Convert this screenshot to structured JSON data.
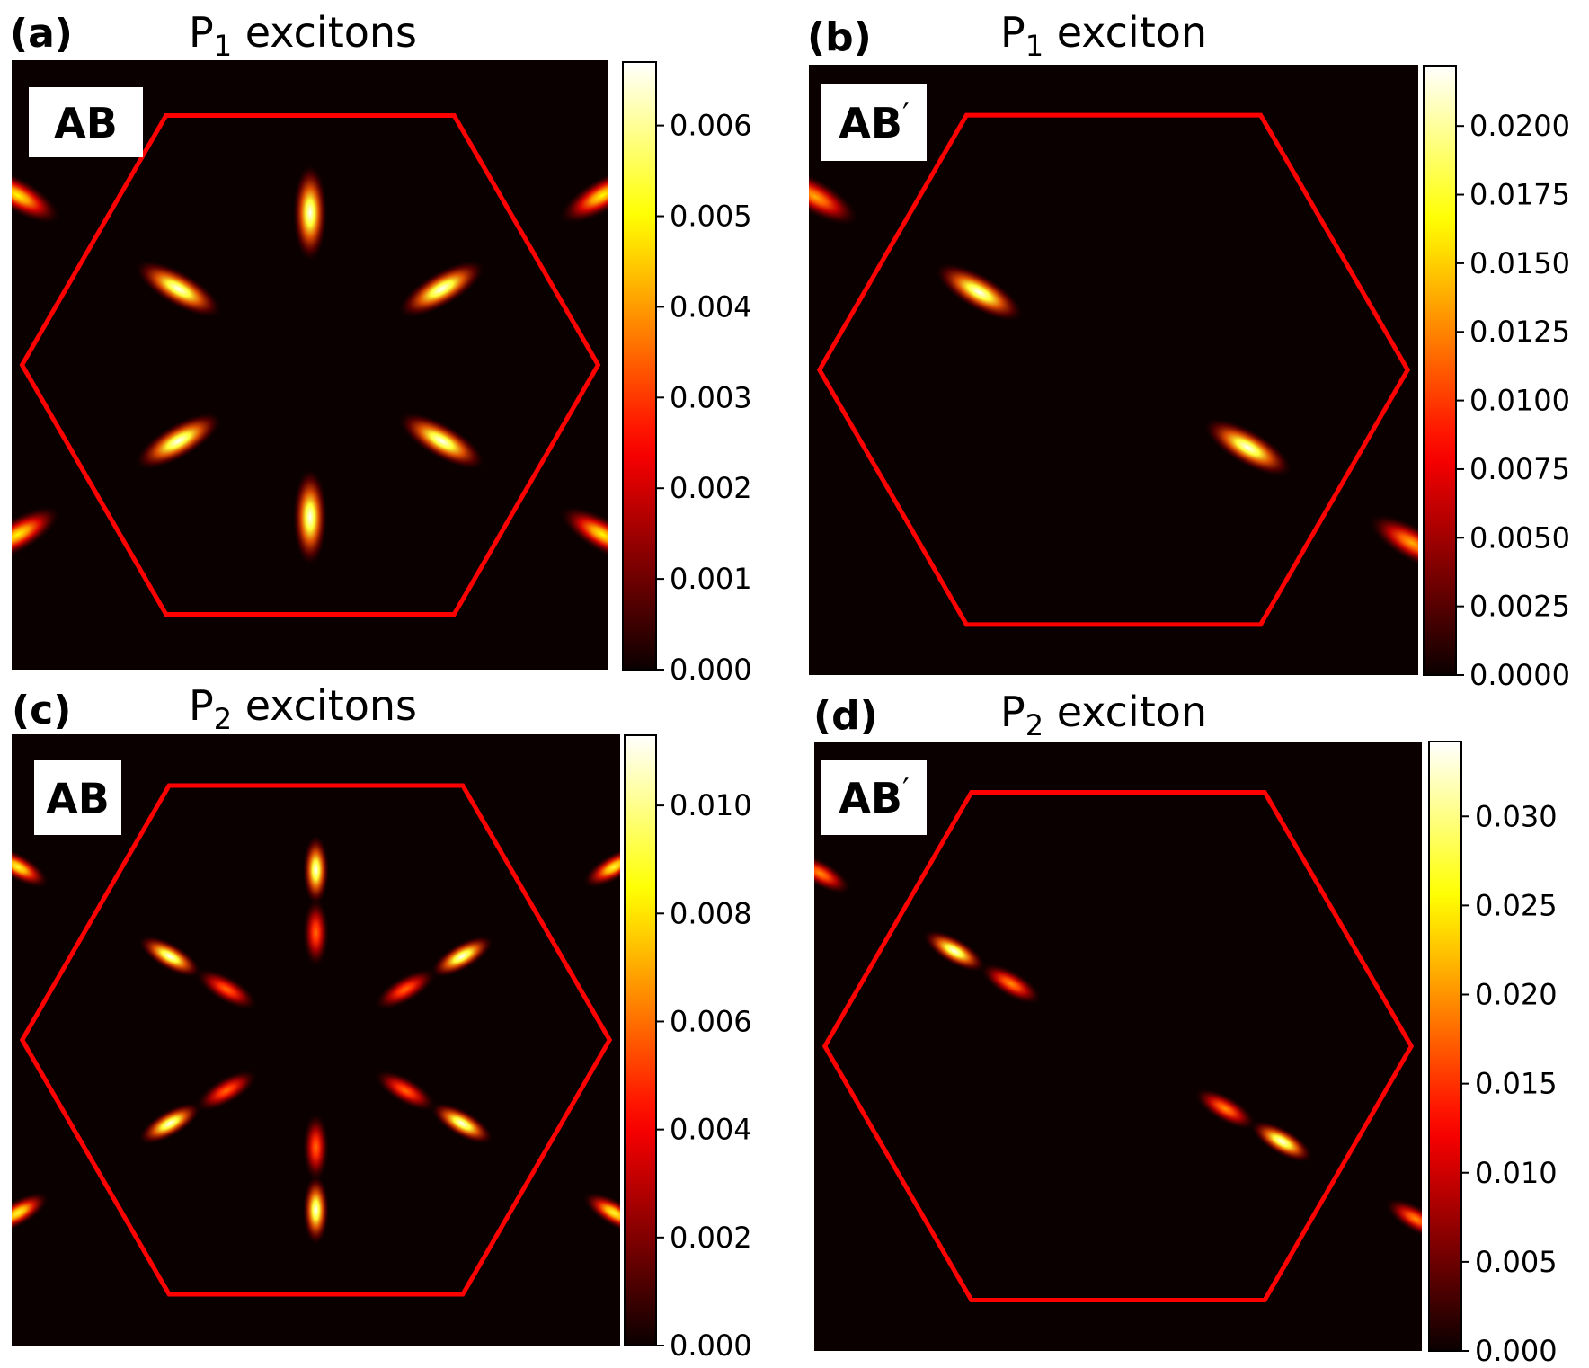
{
  "figure": {
    "colormap": "hot",
    "hexagon_color": "#ff0000",
    "background_color": "#0a0000"
  },
  "chart_data": [
    {
      "type": "heatmap",
      "panel_label": "(a)",
      "title": "P₁ excitons",
      "title_main": "P",
      "title_sub": "1",
      "title_rest": " excitons",
      "stacking": "AB",
      "stacking_prime": false,
      "colorbar": {
        "min": 0.0,
        "max": 0.0067,
        "ticks": [
          0.0,
          0.001,
          0.002,
          0.003,
          0.004,
          0.005,
          0.006
        ],
        "tick_labels": [
          "0.000",
          "0.001",
          "0.002",
          "0.003",
          "0.004",
          "0.005",
          "0.006"
        ]
      },
      "brillouin_zone": "hexagon",
      "lobes": [
        {
          "x": 0.0,
          "y": 0.52,
          "angle": 90,
          "peak": 0.0067
        },
        {
          "x": 0.0,
          "y": -0.52,
          "angle": 90,
          "peak": 0.0067
        },
        {
          "x": -0.45,
          "y": 0.26,
          "angle": -30,
          "peak": 0.0067
        },
        {
          "x": 0.45,
          "y": 0.26,
          "angle": 30,
          "peak": 0.0067
        },
        {
          "x": -0.45,
          "y": -0.26,
          "angle": 30,
          "peak": 0.0067
        },
        {
          "x": 0.45,
          "y": -0.26,
          "angle": -30,
          "peak": 0.0067
        },
        {
          "x": -1.0,
          "y": 0.58,
          "angle": -30,
          "peak": 0.005
        },
        {
          "x": 1.0,
          "y": 0.58,
          "angle": 30,
          "peak": 0.005
        },
        {
          "x": -1.0,
          "y": -0.58,
          "angle": 30,
          "peak": 0.005
        },
        {
          "x": 1.0,
          "y": -0.58,
          "angle": -30,
          "peak": 0.005
        }
      ]
    },
    {
      "type": "heatmap",
      "panel_label": "(b)",
      "title": "P₁ exciton",
      "title_main": "P",
      "title_sub": "1",
      "title_rest": " exciton",
      "stacking": "AB",
      "stacking_prime": true,
      "colorbar": {
        "min": 0.0,
        "max": 0.0222,
        "ticks": [
          0.0,
          0.0025,
          0.005,
          0.0075,
          0.01,
          0.0125,
          0.015,
          0.0175,
          0.02
        ],
        "tick_labels": [
          "0.0000",
          "0.0025",
          "0.0050",
          "0.0075",
          "0.0100",
          "0.0125",
          "0.0150",
          "0.0175",
          "0.0200"
        ]
      },
      "brillouin_zone": "hexagon",
      "lobes": [
        {
          "x": -0.45,
          "y": 0.26,
          "angle": -30,
          "peak": 0.0222
        },
        {
          "x": 0.45,
          "y": -0.26,
          "angle": -30,
          "peak": 0.0222
        },
        {
          "x": -1.0,
          "y": 0.58,
          "angle": -30,
          "peak": 0.014
        },
        {
          "x": 1.0,
          "y": -0.58,
          "angle": -30,
          "peak": 0.014
        }
      ]
    },
    {
      "type": "heatmap",
      "panel_label": "(c)",
      "title": "P₂ excitons",
      "title_main": "P",
      "title_sub": "2",
      "title_rest": " excitons",
      "stacking": "AB",
      "stacking_prime": false,
      "colorbar": {
        "min": 0.0,
        "max": 0.0113,
        "ticks": [
          0.0,
          0.002,
          0.004,
          0.006,
          0.008,
          0.01
        ],
        "tick_labels": [
          "0.000",
          "0.002",
          "0.004",
          "0.006",
          "0.008",
          "0.010"
        ]
      },
      "brillouin_zone": "hexagon",
      "lobes": [
        {
          "x": 0.0,
          "y": 0.57,
          "angle": 90,
          "peak": 0.0113,
          "small": true
        },
        {
          "x": 0.0,
          "y": 0.36,
          "angle": 90,
          "peak": 0.006,
          "small": true
        },
        {
          "x": 0.0,
          "y": -0.57,
          "angle": 90,
          "peak": 0.0113,
          "small": true
        },
        {
          "x": 0.0,
          "y": -0.36,
          "angle": 90,
          "peak": 0.006,
          "small": true
        },
        {
          "x": -0.49,
          "y": 0.28,
          "angle": -30,
          "peak": 0.0113,
          "small": true
        },
        {
          "x": -0.3,
          "y": 0.17,
          "angle": -30,
          "peak": 0.006,
          "small": true
        },
        {
          "x": 0.49,
          "y": 0.28,
          "angle": 30,
          "peak": 0.0113,
          "small": true
        },
        {
          "x": 0.3,
          "y": 0.17,
          "angle": 30,
          "peak": 0.006,
          "small": true
        },
        {
          "x": -0.49,
          "y": -0.28,
          "angle": 30,
          "peak": 0.0113,
          "small": true
        },
        {
          "x": -0.3,
          "y": -0.17,
          "angle": 30,
          "peak": 0.006,
          "small": true
        },
        {
          "x": 0.49,
          "y": -0.28,
          "angle": -30,
          "peak": 0.0113,
          "small": true
        },
        {
          "x": 0.3,
          "y": -0.17,
          "angle": -30,
          "peak": 0.006,
          "small": true
        },
        {
          "x": -1.0,
          "y": 0.58,
          "angle": -30,
          "peak": 0.009,
          "small": true
        },
        {
          "x": 1.0,
          "y": 0.58,
          "angle": 30,
          "peak": 0.009,
          "small": true
        },
        {
          "x": -1.0,
          "y": -0.58,
          "angle": 30,
          "peak": 0.009,
          "small": true
        },
        {
          "x": 1.0,
          "y": -0.58,
          "angle": -30,
          "peak": 0.009,
          "small": true
        }
      ]
    },
    {
      "type": "heatmap",
      "panel_label": "(d)",
      "title": "P₂ exciton",
      "title_main": "P",
      "title_sub": "2",
      "title_rest": " exciton",
      "stacking": "AB",
      "stacking_prime": true,
      "colorbar": {
        "min": 0.0,
        "max": 0.0342,
        "ticks": [
          0.0,
          0.005,
          0.01,
          0.015,
          0.02,
          0.025,
          0.03
        ],
        "tick_labels": [
          "0.000",
          "0.005",
          "0.010",
          "0.015",
          "0.020",
          "0.025",
          "0.030"
        ]
      },
      "brillouin_zone": "hexagon",
      "lobes": [
        {
          "x": -0.55,
          "y": 0.32,
          "angle": -30,
          "peak": 0.0342,
          "small": true
        },
        {
          "x": -0.36,
          "y": 0.21,
          "angle": -30,
          "peak": 0.02,
          "small": true
        },
        {
          "x": 0.36,
          "y": -0.21,
          "angle": -30,
          "peak": 0.02,
          "small": true
        },
        {
          "x": 0.55,
          "y": -0.32,
          "angle": -30,
          "peak": 0.0342,
          "small": true
        },
        {
          "x": -1.0,
          "y": 0.58,
          "angle": -30,
          "peak": 0.02,
          "small": true
        },
        {
          "x": 1.0,
          "y": -0.58,
          "angle": -30,
          "peak": 0.02,
          "small": true
        }
      ]
    }
  ]
}
